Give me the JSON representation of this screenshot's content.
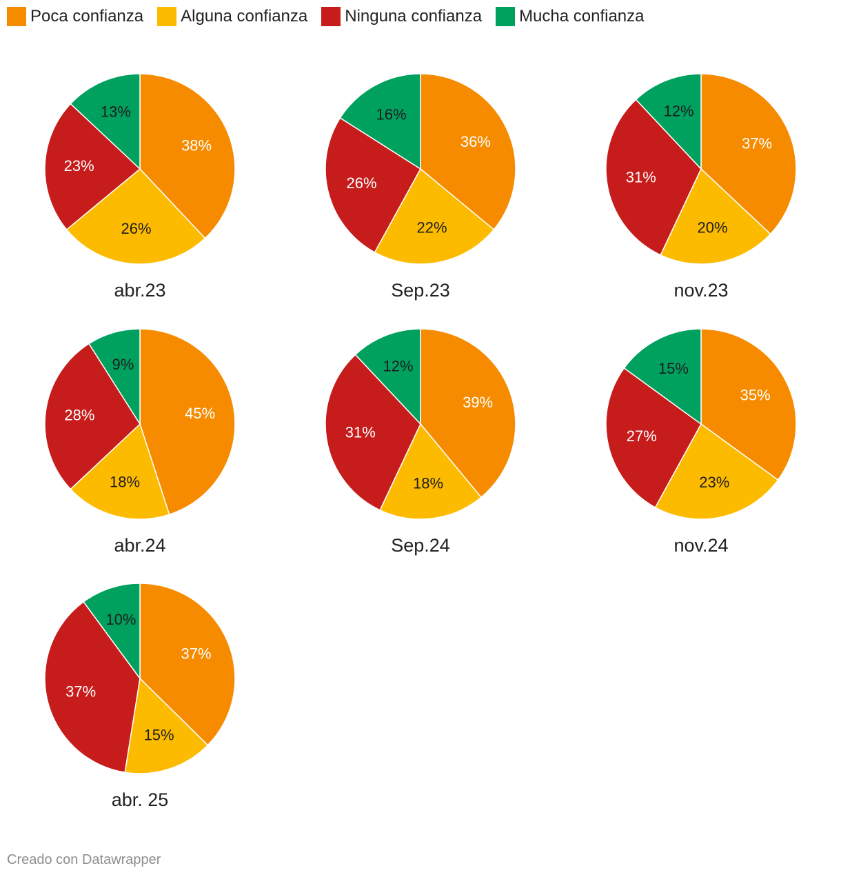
{
  "legend": [
    {
      "label": "Poca confianza",
      "color": "#f68b00"
    },
    {
      "label": "Alguna confianza",
      "color": "#fdbb00"
    },
    {
      "label": "Ninguna confianza",
      "color": "#c61c1c"
    },
    {
      "label": "Mucha confianza",
      "color": "#00a05f"
    }
  ],
  "chart_data": {
    "type": "pie",
    "categories": [
      "Poca confianza",
      "Alguna confianza",
      "Ninguna confianza",
      "Mucha confianza"
    ],
    "colors": [
      "#f68b00",
      "#fdbb00",
      "#c61c1c",
      "#00a05f"
    ],
    "label_colors": [
      "#ffffff",
      "#1d1d1d",
      "#ffffff",
      "#1d1d1d"
    ],
    "pies": [
      {
        "title": "abr.23",
        "values": [
          38,
          26,
          23,
          13
        ]
      },
      {
        "title": "Sep.23",
        "values": [
          36,
          22,
          26,
          16
        ]
      },
      {
        "title": "nov.23",
        "values": [
          37,
          20,
          31,
          12
        ]
      },
      {
        "title": "abr.24",
        "values": [
          45,
          18,
          28,
          9
        ]
      },
      {
        "title": "Sep.24",
        "values": [
          39,
          18,
          31,
          12
        ]
      },
      {
        "title": "nov.24",
        "values": [
          35,
          23,
          27,
          15
        ]
      },
      {
        "title": "abr. 25",
        "values": [
          37,
          15,
          37,
          10
        ]
      }
    ],
    "value_suffix": "%"
  },
  "footer": "Creado con Datawrapper"
}
